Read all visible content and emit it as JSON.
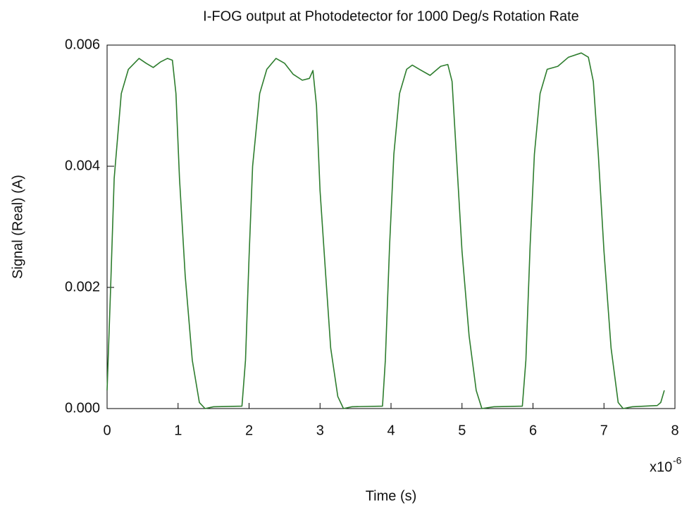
{
  "chart_data": {
    "type": "line",
    "title": "I-FOG output at Photodetector for 1000 Deg/s Rotation Rate",
    "x_label": "Time (s)",
    "y_label": "Signal (Real) (A)",
    "x_multiplier": "x10",
    "x_multiplier_exponent": "-6",
    "xlim": [
      0,
      8
    ],
    "xticks": [
      0,
      1,
      2,
      3,
      4,
      5,
      6,
      7,
      8
    ],
    "ylim": [
      0,
      0.006
    ],
    "yticks": [
      {
        "value": 0,
        "label": "0.000"
      },
      0.002,
      0.004,
      0.006
    ],
    "series": [
      {
        "color": "#2e7d2e",
        "x": [
          0,
          0.05,
          0.1,
          0.2,
          0.3,
          0.45,
          0.55,
          0.65,
          0.75,
          0.85,
          0.92,
          0.97,
          1.02,
          1.1,
          1.2,
          1.3,
          1.38,
          1.5,
          1.9,
          1.95,
          2.0,
          2.05,
          2.15,
          2.25,
          2.38,
          2.5,
          2.62,
          2.75,
          2.85,
          2.9,
          2.95,
          3.0,
          3.08,
          3.15,
          3.25,
          3.33,
          3.45,
          3.88,
          3.92,
          3.98,
          4.04,
          4.12,
          4.22,
          4.3,
          4.4,
          4.55,
          4.7,
          4.8,
          4.86,
          4.92,
          5.0,
          5.1,
          5.2,
          5.28,
          5.45,
          5.85,
          5.9,
          5.96,
          6.02,
          6.1,
          6.2,
          6.35,
          6.5,
          6.68,
          6.78,
          6.85,
          6.92,
          7.0,
          7.1,
          7.2,
          7.27,
          7.4,
          7.75,
          7.8,
          7.85
        ],
        "values": [
          0.0003,
          0.002,
          0.0038,
          0.0052,
          0.0056,
          0.00578,
          0.0057,
          0.00563,
          0.00572,
          0.00578,
          0.00575,
          0.0052,
          0.0038,
          0.0022,
          0.0008,
          0.0001,
          0.0,
          3e-05,
          4e-05,
          0.0008,
          0.0025,
          0.004,
          0.0052,
          0.0056,
          0.00578,
          0.0057,
          0.00552,
          0.00542,
          0.00545,
          0.00558,
          0.005,
          0.0036,
          0.0022,
          0.001,
          0.0002,
          0.0,
          3e-05,
          4e-05,
          0.0008,
          0.0027,
          0.0042,
          0.0052,
          0.0056,
          0.00567,
          0.0056,
          0.0055,
          0.00565,
          0.00568,
          0.0054,
          0.0042,
          0.0026,
          0.0012,
          0.0003,
          0.0,
          3e-05,
          4e-05,
          0.0008,
          0.0027,
          0.0042,
          0.0052,
          0.0056,
          0.00565,
          0.0058,
          0.00587,
          0.0058,
          0.0054,
          0.0042,
          0.0026,
          0.001,
          0.0001,
          0.0,
          3e-05,
          5e-05,
          0.0001,
          0.0003
        ]
      }
    ]
  }
}
